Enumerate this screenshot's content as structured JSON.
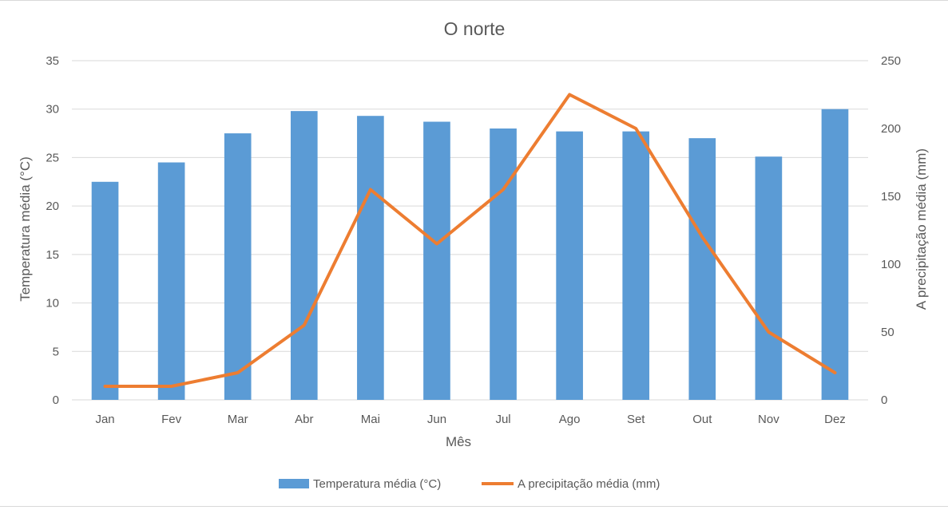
{
  "chart_data": {
    "type": "bar+line",
    "title": "O norte",
    "xlabel": "Mês",
    "ylabel_left": "Temperatura média (°C)",
    "ylabel_right": "A precipitação média (mm)",
    "categories": [
      "Jan",
      "Fev",
      "Mar",
      "Abr",
      "Mai",
      "Jun",
      "Jul",
      "Ago",
      "Set",
      "Out",
      "Nov",
      "Dez"
    ],
    "y_left": {
      "min": 0,
      "max": 35,
      "step": 5
    },
    "y_right": {
      "min": 0,
      "max": 250,
      "step": 50
    },
    "series": [
      {
        "name": "Temperatura média (°C)",
        "type": "bar",
        "axis": "left",
        "color": "#5b9bd5",
        "values": [
          22.5,
          24.5,
          27.5,
          29.8,
          29.3,
          28.7,
          28.0,
          27.7,
          27.7,
          27.0,
          25.1,
          30.0
        ]
      },
      {
        "name": "A precipitação média (mm)",
        "type": "line",
        "axis": "right",
        "color": "#ed7d31",
        "values": [
          10,
          10,
          20,
          55,
          155,
          115,
          155,
          225,
          200,
          120,
          50,
          20
        ]
      }
    ],
    "grid": true,
    "legend_position": "bottom"
  }
}
